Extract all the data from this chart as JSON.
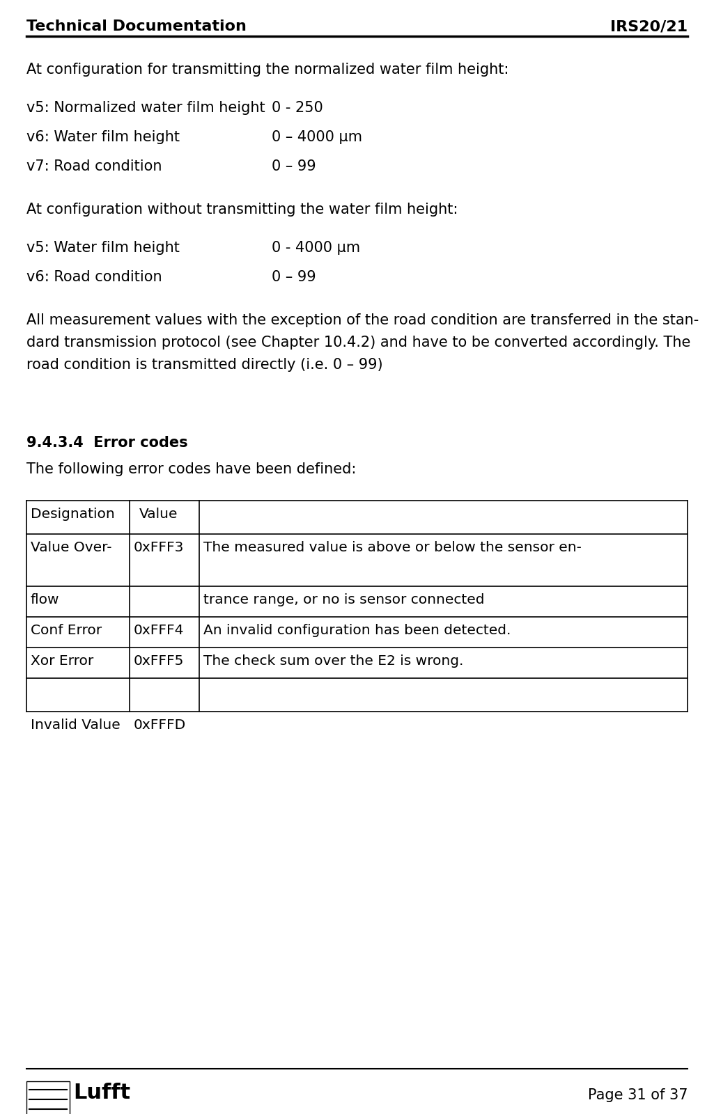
{
  "header_left": "Technical Documentation",
  "header_right": "IRS20/21",
  "footer_right": "Page 31 of 37",
  "section1_title": "At configuration for transmitting the normalized water film height:",
  "section1_items": [
    [
      "v5: Normalized water film height",
      "0 - 250"
    ],
    [
      "v6: Water film height",
      "0 – 4000 µm"
    ],
    [
      "v7: Road condition",
      "0 – 99"
    ]
  ],
  "section2_title": "At configuration without transmitting the water film height:",
  "section2_items": [
    [
      "v5: Water film height",
      "0 - 4000 µm"
    ],
    [
      "v6: Road condition",
      "0 – 99"
    ]
  ],
  "para_lines": [
    "All measurement values with the exception of the road condition are transferred in the stan-",
    "dard transmission protocol (see Chapter 10.4.2) and have to be converted accordingly. The",
    "road condition is transmitted directly (i.e. 0 – 99)"
  ],
  "section3_title": "9.4.3.4  Error codes",
  "section3_intro": "The following error codes have been defined:",
  "table_rows": [
    [
      "Value Over-",
      "0xFFF3",
      "The measured value is above or below the sensor en-"
    ],
    [
      "flow",
      "",
      "trance range, or no is sensor connected"
    ],
    [
      "Conf Error",
      "0xFFF4",
      "An invalid configuration has been detected."
    ],
    [
      "Xor Error",
      "0xFFF5",
      "The check sum over the E2 is wrong."
    ],
    [
      "",
      "",
      ""
    ],
    [
      "Invalid Value",
      "0xFFFD",
      ""
    ]
  ],
  "background_color": "#ffffff",
  "text_color": "#000000",
  "font_size_header": 16,
  "font_size_body": 15,
  "font_size_table": 14.5
}
